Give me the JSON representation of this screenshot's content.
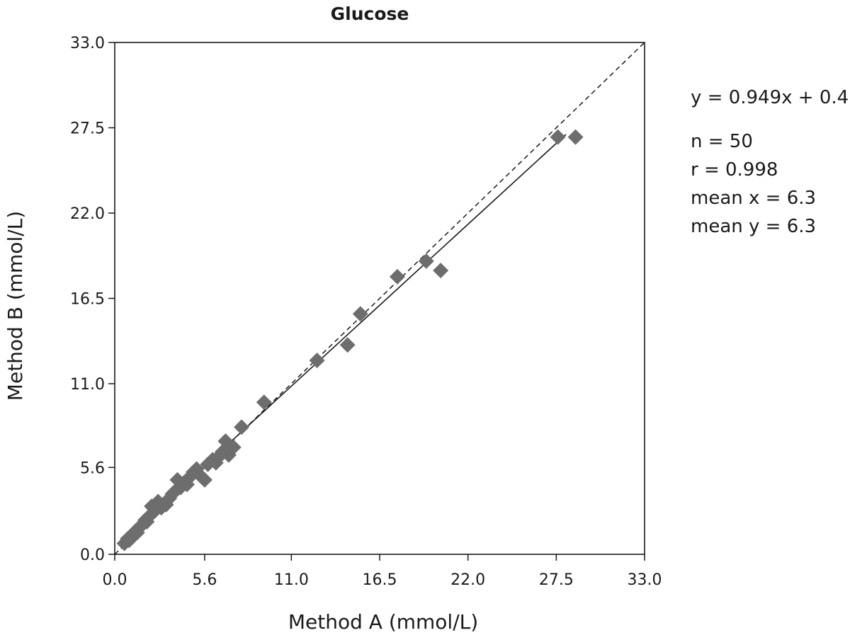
{
  "chart_data": {
    "type": "scatter",
    "title": "Glucose",
    "xlabel": "Method A (mmol/L)",
    "ylabel": "Method B (mmol/L)",
    "xlim": [
      0,
      33
    ],
    "ylim": [
      0,
      33
    ],
    "x_ticks": [
      "0.0",
      "5.6",
      "11.0",
      "16.5",
      "22.0",
      "27.5",
      "33.0"
    ],
    "y_ticks": [
      "0.0",
      "5.6",
      "11.0",
      "16.5",
      "22.0",
      "27.5",
      "33.0"
    ],
    "x_tick_values": [
      0,
      5.6,
      11,
      16.5,
      22,
      27.5,
      33
    ],
    "y_tick_values": [
      0,
      5.6,
      11,
      16.5,
      22,
      27.5,
      33
    ],
    "grid": false,
    "marker_color": "#6d6d6d",
    "points": [
      [
        0.6,
        0.7
      ],
      [
        0.8,
        1.0
      ],
      [
        0.9,
        0.9
      ],
      [
        1.0,
        1.1
      ],
      [
        1.1,
        1.2
      ],
      [
        1.2,
        1.3
      ],
      [
        1.3,
        1.5
      ],
      [
        1.4,
        1.4
      ],
      [
        1.5,
        1.7
      ],
      [
        1.6,
        1.8
      ],
      [
        1.7,
        1.9
      ],
      [
        1.8,
        2.0
      ],
      [
        1.9,
        2.2
      ],
      [
        2.0,
        2.1
      ],
      [
        2.1,
        2.4
      ],
      [
        2.3,
        3.1
      ],
      [
        2.5,
        2.8
      ],
      [
        2.7,
        3.4
      ],
      [
        2.9,
        3.0
      ],
      [
        3.2,
        3.2
      ],
      [
        3.4,
        3.6
      ],
      [
        3.6,
        3.9
      ],
      [
        3.8,
        4.1
      ],
      [
        3.9,
        4.8
      ],
      [
        4.1,
        4.3
      ],
      [
        4.3,
        4.6
      ],
      [
        4.6,
        4.9
      ],
      [
        4.9,
        5.3
      ],
      [
        5.1,
        5.5
      ],
      [
        5.4,
        5.0
      ],
      [
        5.6,
        4.8
      ],
      [
        5.8,
        5.8
      ],
      [
        6.1,
        6.1
      ],
      [
        6.3,
        5.9
      ],
      [
        6.5,
        6.3
      ],
      [
        6.7,
        6.6
      ],
      [
        6.9,
        7.3
      ],
      [
        7.1,
        6.4
      ],
      [
        7.4,
        6.9
      ],
      [
        7.9,
        8.2
      ],
      [
        9.3,
        9.8
      ],
      [
        12.6,
        12.5
      ],
      [
        14.5,
        13.5
      ],
      [
        15.3,
        15.5
      ],
      [
        17.6,
        17.9
      ],
      [
        19.4,
        18.9
      ],
      [
        20.3,
        18.3
      ],
      [
        27.6,
        26.9
      ],
      [
        28.7,
        26.9
      ],
      [
        4.5,
        4.5
      ]
    ],
    "regression": {
      "slope": 0.949,
      "intercept": 0.4,
      "x_range": [
        0.3,
        28.1
      ]
    },
    "identity_line": true
  },
  "stats": {
    "equation": "y = 0.949x + 0.4",
    "n": "n = 50",
    "r": "r = 0.998",
    "mean_x": "mean x = 6.3",
    "mean_y": "mean y = 6.3"
  }
}
